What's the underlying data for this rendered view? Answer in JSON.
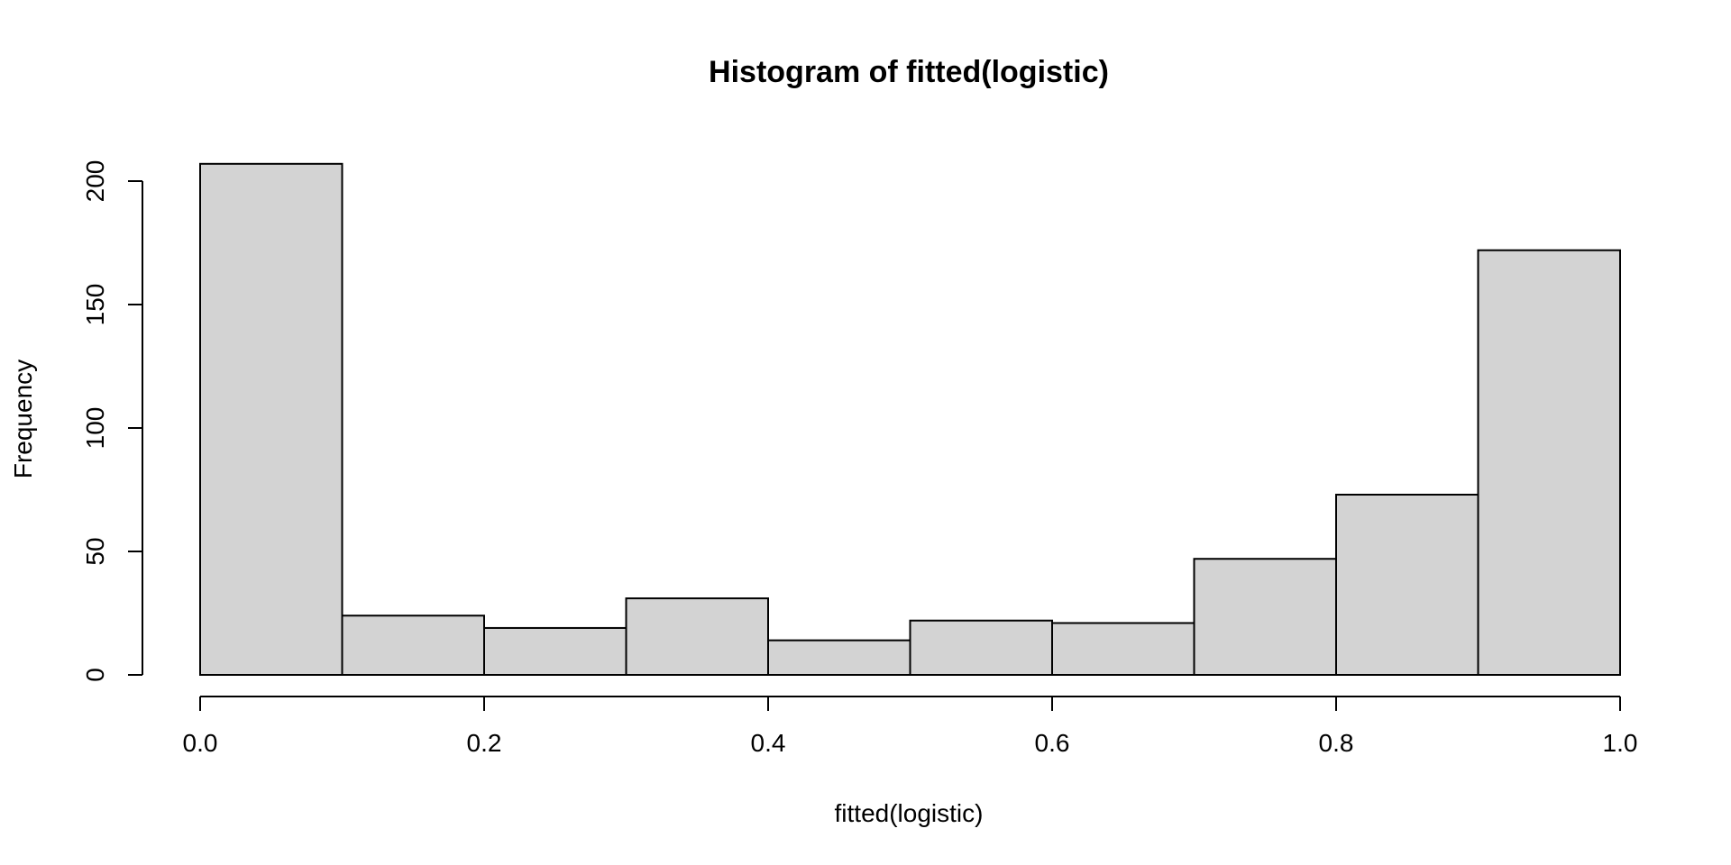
{
  "chart_data": {
    "type": "bar",
    "title": "Histogram of fitted(logistic)",
    "xlabel": "fitted(logistic)",
    "ylabel": "Frequency",
    "bins": [
      {
        "from": 0.0,
        "to": 0.1,
        "count": 207
      },
      {
        "from": 0.1,
        "to": 0.2,
        "count": 24
      },
      {
        "from": 0.2,
        "to": 0.3,
        "count": 19
      },
      {
        "from": 0.3,
        "to": 0.4,
        "count": 31
      },
      {
        "from": 0.4,
        "to": 0.5,
        "count": 14
      },
      {
        "from": 0.5,
        "to": 0.6,
        "count": 22
      },
      {
        "from": 0.6,
        "to": 0.7,
        "count": 21
      },
      {
        "from": 0.7,
        "to": 0.8,
        "count": 47
      },
      {
        "from": 0.8,
        "to": 0.9,
        "count": 73
      },
      {
        "from": 0.9,
        "to": 1.0,
        "count": 172
      }
    ],
    "xlim": [
      0.0,
      1.0
    ],
    "ylim": [
      0,
      200
    ],
    "x_ticks": [
      "0.0",
      "0.2",
      "0.4",
      "0.6",
      "0.8",
      "1.0"
    ],
    "y_ticks": [
      "0",
      "50",
      "100",
      "150",
      "200"
    ],
    "grid": false,
    "bar_fill": "#d3d3d3",
    "bar_stroke": "#000000"
  }
}
